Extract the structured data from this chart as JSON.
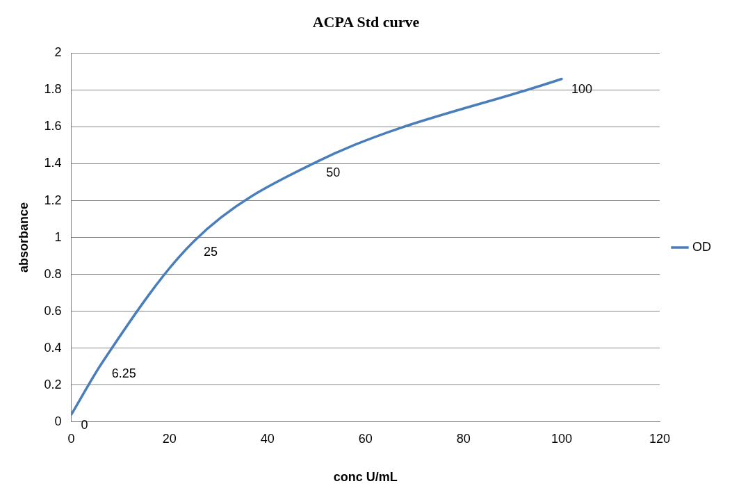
{
  "chart_data": {
    "type": "line",
    "title": "ACPA Std curve",
    "xlabel": "conc U/mL",
    "ylabel": "absorbance",
    "x": [
      0,
      6.25,
      25,
      50,
      100
    ],
    "series": [
      {
        "name": "OD",
        "color": "#4a7ebb",
        "values": [
          0.04,
          0.32,
          0.98,
          1.41,
          1.86
        ]
      }
    ],
    "xlim": [
      0,
      120
    ],
    "xticks": [
      0,
      20,
      40,
      60,
      80,
      100,
      120
    ],
    "ylim": [
      0,
      2
    ],
    "yticks": [
      0,
      0.2,
      0.4,
      0.6,
      0.8,
      1,
      1.2,
      1.4,
      1.6,
      1.8,
      2
    ],
    "grid": "y",
    "legend": "right",
    "marker": "none",
    "line_style": "solid",
    "annotations": [
      {
        "text": "0",
        "x": 0,
        "y": 0.04
      },
      {
        "text": "6.25",
        "x": 6.25,
        "y": 0.32
      },
      {
        "text": "25",
        "x": 25,
        "y": 0.98
      },
      {
        "text": "50",
        "x": 50,
        "y": 1.41
      },
      {
        "text": "100",
        "x": 100,
        "y": 1.86
      }
    ]
  }
}
